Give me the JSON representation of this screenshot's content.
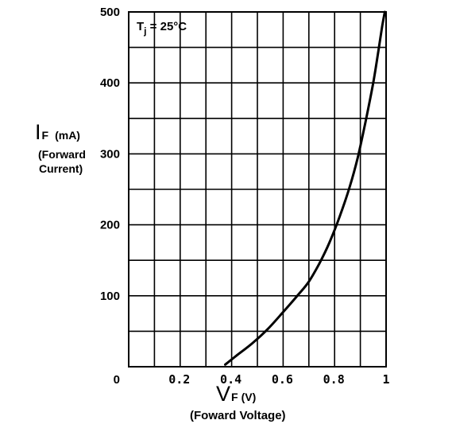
{
  "chart_data": {
    "type": "line",
    "annotation": {
      "base": "T",
      "sub": "j",
      "rest": " = 25°C"
    },
    "y_axis": {
      "symbol": "I",
      "symbol_sub": "F",
      "unit": "(mA)",
      "description_line1": "(Forward",
      "description_line2": "Current)",
      "ticks": [
        {
          "value": 0,
          "label": "0"
        },
        {
          "value": 100,
          "label": "100"
        },
        {
          "value": 200,
          "label": "200"
        },
        {
          "value": 300,
          "label": "300"
        },
        {
          "value": 400,
          "label": "400"
        },
        {
          "value": 500,
          "label": "500"
        }
      ],
      "range": [
        0,
        500
      ]
    },
    "x_axis": {
      "symbol": "V",
      "symbol_sub": "F",
      "unit": "(V)",
      "description": "(Foward Voltage)",
      "ticks": [
        {
          "value": 0.2,
          "label": "0.2"
        },
        {
          "value": 0.4,
          "label": "0.4"
        },
        {
          "value": 0.6,
          "label": "0.6"
        },
        {
          "value": 0.8,
          "label": "0.8"
        },
        {
          "value": 1.0,
          "label": "1"
        }
      ],
      "range": [
        0,
        1.0
      ]
    },
    "grid": {
      "x_step": 0.1,
      "y_step": 50,
      "shown": true
    },
    "series": [
      {
        "x": [
          0.375,
          0.42,
          0.48,
          0.54,
          0.6,
          0.66,
          0.7,
          0.74,
          0.78,
          0.82,
          0.86,
          0.89,
          0.92,
          0.95,
          0.97,
          0.985,
          0.995
        ],
        "y": [
          3,
          16,
          33,
          53,
          77,
          102,
          120,
          145,
          175,
          212,
          255,
          295,
          345,
          400,
          445,
          480,
          500
        ]
      }
    ]
  }
}
